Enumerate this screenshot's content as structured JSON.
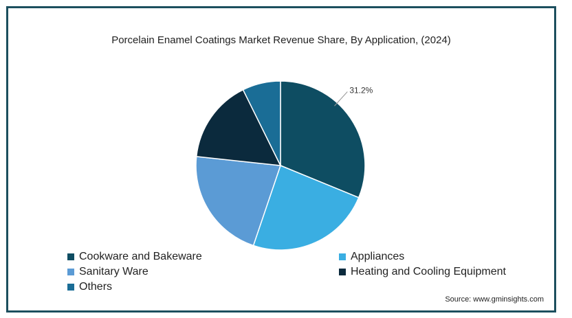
{
  "chart_data": {
    "type": "pie",
    "title": "Porcelain Enamel Coatings Market Revenue Share, By Application, (2024)",
    "slices": [
      {
        "label": "Cookware and Bakeware",
        "value": 31.2,
        "color": "#0e4d62",
        "data_label": "31.2%"
      },
      {
        "label": "Appliances",
        "value": 24.0,
        "color": "#3aaee2",
        "data_label": ""
      },
      {
        "label": "Sanitary Ware",
        "value": 21.5,
        "color": "#5b9bd5",
        "data_label": ""
      },
      {
        "label": "Heating and Cooling Equipment",
        "value": 16.0,
        "color": "#0b2a3d",
        "data_label": ""
      },
      {
        "label": "Others",
        "value": 7.3,
        "color": "#1a6d96",
        "data_label": ""
      }
    ],
    "legend_position": "bottom-left"
  },
  "source": "Source: www.gminsights.com"
}
